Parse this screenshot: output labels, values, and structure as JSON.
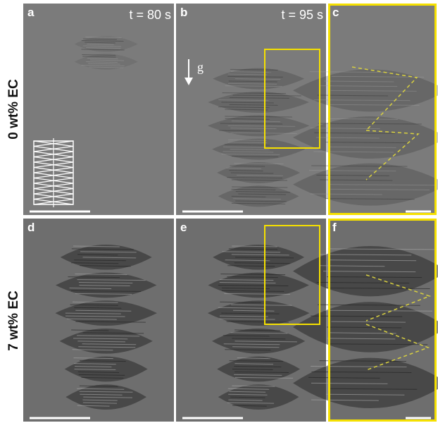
{
  "row_labels": [
    "0 wt% EC",
    "7 wt% EC"
  ],
  "panels": [
    {
      "label": "a",
      "time": "t = 80 s"
    },
    {
      "label": "b",
      "time": "t = 95 s",
      "gravity": "g"
    },
    {
      "label": "c"
    },
    {
      "label": "d"
    },
    {
      "label": "e"
    },
    {
      "label": "f"
    }
  ]
}
